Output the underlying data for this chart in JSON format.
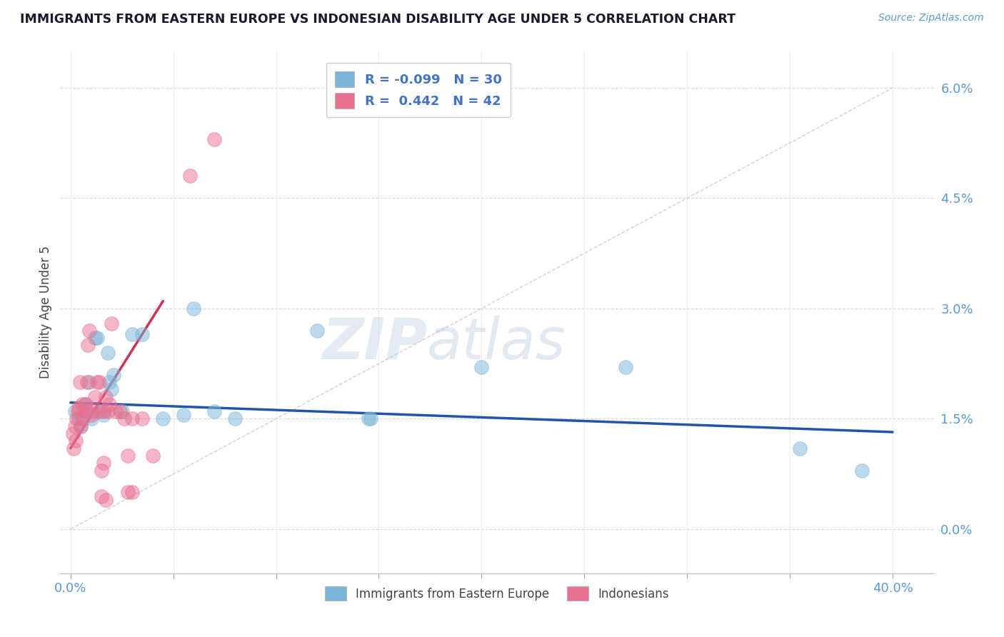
{
  "title": "IMMIGRANTS FROM EASTERN EUROPE VS INDONESIAN DISABILITY AGE UNDER 5 CORRELATION CHART",
  "source": "Source: ZipAtlas.com",
  "ylabel": "Disability Age Under 5",
  "ytick_vals": [
    0.0,
    1.5,
    3.0,
    4.5,
    6.0
  ],
  "ytick_labels": [
    "0.0%",
    "1.5%",
    "3.0%",
    "4.5%",
    "6.0%"
  ],
  "xtick_vals": [
    0.0,
    5.0,
    10.0,
    15.0,
    20.0,
    25.0,
    30.0,
    35.0,
    40.0
  ],
  "xtick_edge_labels": {
    "0.0": "0.0%",
    "40.0": "40.0%"
  },
  "xlim": [
    -0.5,
    42.0
  ],
  "ylim": [
    -0.6,
    6.5
  ],
  "legend_entries": [
    {
      "label_r": "R = -0.099",
      "label_n": "N = 30",
      "color": "#a8c8e8"
    },
    {
      "label_r": "R =  0.442",
      "label_n": "N = 42",
      "color": "#f4b8c8"
    }
  ],
  "legend_bottom": [
    "Immigrants from Eastern Europe",
    "Indonesians"
  ],
  "blue_scatter_x": [
    0.2,
    0.4,
    0.5,
    0.7,
    0.8,
    0.9,
    1.0,
    1.2,
    1.3,
    1.5,
    1.6,
    1.8,
    1.9,
    2.0,
    2.1,
    2.5,
    3.0,
    3.5,
    4.5,
    5.5,
    6.0,
    7.0,
    8.0,
    12.0,
    14.5,
    14.6,
    20.0,
    27.0,
    35.5,
    38.5
  ],
  "blue_scatter_y": [
    1.6,
    1.5,
    1.4,
    1.7,
    1.6,
    2.0,
    1.5,
    2.6,
    2.6,
    1.6,
    1.55,
    2.4,
    2.0,
    1.9,
    2.1,
    1.6,
    2.65,
    2.65,
    1.5,
    1.55,
    3.0,
    1.6,
    1.5,
    2.7,
    1.5,
    1.5,
    2.2,
    2.2,
    1.1,
    0.8
  ],
  "pink_scatter_x": [
    0.1,
    0.15,
    0.2,
    0.25,
    0.3,
    0.35,
    0.4,
    0.45,
    0.5,
    0.55,
    0.6,
    0.7,
    0.75,
    0.8,
    0.85,
    0.9,
    1.0,
    1.1,
    1.2,
    1.3,
    1.35,
    1.4,
    1.5,
    1.6,
    1.7,
    1.8,
    1.9,
    2.0,
    2.2,
    2.4,
    2.6,
    2.8,
    3.0,
    3.5,
    4.0,
    5.8,
    7.0,
    1.5,
    1.6,
    1.7,
    2.8,
    3.0
  ],
  "pink_scatter_y": [
    1.3,
    1.1,
    1.4,
    1.2,
    1.5,
    1.6,
    1.65,
    2.0,
    1.4,
    1.7,
    1.5,
    1.6,
    1.7,
    2.0,
    2.5,
    2.7,
    1.55,
    1.6,
    1.8,
    2.0,
    1.6,
    2.0,
    0.45,
    1.6,
    1.8,
    1.6,
    1.7,
    2.8,
    1.6,
    1.6,
    1.5,
    0.5,
    1.5,
    1.5,
    1.0,
    4.8,
    5.3,
    0.8,
    0.9,
    0.4,
    1.0,
    0.5
  ],
  "blue_line_x": [
    0.0,
    40.0
  ],
  "blue_line_y": [
    1.72,
    1.32
  ],
  "pink_line_x": [
    0.0,
    4.5
  ],
  "pink_line_y": [
    1.1,
    3.1
  ],
  "diagonal_line_x": [
    0.0,
    40.0
  ],
  "diagonal_line_y": [
    0.0,
    6.0
  ],
  "axis_color": "#5b9bd5",
  "scatter_blue_color": "#7ab4d8",
  "scatter_pink_color": "#e87090",
  "line_blue_color": "#2255aa",
  "line_pink_color": "#cc3355",
  "diagonal_color": "#c8c8c8",
  "grid_color": "#d0d8e8",
  "watermark_zip": "ZIP",
  "watermark_atlas": "atlas",
  "background_color": "#ffffff"
}
